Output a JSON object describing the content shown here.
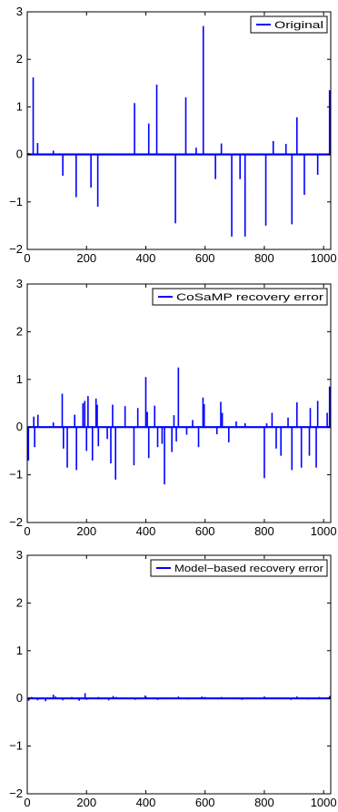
{
  "chart_data": [
    {
      "type": "stem",
      "series": [
        {
          "name": "Original",
          "color": "#0000ff"
        }
      ],
      "xlim": [
        0,
        1024
      ],
      "ylim": [
        -2,
        3
      ],
      "xticks": [
        "0",
        "200",
        "400",
        "600",
        "800",
        "1000"
      ],
      "yticks": [
        "−2",
        "−1",
        "0",
        "1",
        "2",
        "3"
      ],
      "legend_position": "top-right",
      "grid": false,
      "points": [
        {
          "x": 5,
          "y": 0.03
        },
        {
          "x": 20,
          "y": 1.62
        },
        {
          "x": 35,
          "y": 0.24
        },
        {
          "x": 88,
          "y": 0.08
        },
        {
          "x": 120,
          "y": -0.45
        },
        {
          "x": 165,
          "y": -0.9
        },
        {
          "x": 215,
          "y": -0.7
        },
        {
          "x": 238,
          "y": -1.1
        },
        {
          "x": 362,
          "y": 1.08
        },
        {
          "x": 410,
          "y": 0.65
        },
        {
          "x": 437,
          "y": 1.47
        },
        {
          "x": 500,
          "y": -1.45
        },
        {
          "x": 535,
          "y": 1.2
        },
        {
          "x": 570,
          "y": 0.14
        },
        {
          "x": 594,
          "y": 2.7
        },
        {
          "x": 635,
          "y": -0.52
        },
        {
          "x": 655,
          "y": 0.23
        },
        {
          "x": 690,
          "y": -1.73
        },
        {
          "x": 718,
          "y": -0.52
        },
        {
          "x": 735,
          "y": -1.73
        },
        {
          "x": 805,
          "y": -1.5
        },
        {
          "x": 830,
          "y": 0.28
        },
        {
          "x": 873,
          "y": 0.22
        },
        {
          "x": 893,
          "y": -1.47
        },
        {
          "x": 910,
          "y": 0.78
        },
        {
          "x": 935,
          "y": -0.85
        },
        {
          "x": 980,
          "y": -0.43
        },
        {
          "x": 1020,
          "y": 1.35
        }
      ]
    },
    {
      "type": "stem",
      "series": [
        {
          "name": "CoSaMP recovery error",
          "color": "#0000ff"
        }
      ],
      "xlim": [
        0,
        1024
      ],
      "ylim": [
        -2,
        3
      ],
      "xticks": [
        "0",
        "200",
        "400",
        "600",
        "800",
        "1000"
      ],
      "yticks": [
        "−2",
        "−1",
        "0",
        "1",
        "2",
        "3"
      ],
      "legend_position": "top-right",
      "grid": false,
      "points": [
        {
          "x": 4,
          "y": -0.7
        },
        {
          "x": 22,
          "y": 0.22
        },
        {
          "x": 25,
          "y": -0.42
        },
        {
          "x": 36,
          "y": 0.26
        },
        {
          "x": 88,
          "y": 0.1
        },
        {
          "x": 118,
          "y": 0.7
        },
        {
          "x": 122,
          "y": -0.45
        },
        {
          "x": 135,
          "y": -0.85
        },
        {
          "x": 160,
          "y": 0.26
        },
        {
          "x": 166,
          "y": -0.9
        },
        {
          "x": 188,
          "y": 0.5
        },
        {
          "x": 194,
          "y": 0.55
        },
        {
          "x": 200,
          "y": -0.5
        },
        {
          "x": 205,
          "y": 0.65
        },
        {
          "x": 220,
          "y": -0.7
        },
        {
          "x": 232,
          "y": 0.6
        },
        {
          "x": 236,
          "y": 0.47
        },
        {
          "x": 240,
          "y": -0.4
        },
        {
          "x": 270,
          "y": -0.25
        },
        {
          "x": 282,
          "y": -0.76
        },
        {
          "x": 288,
          "y": 0.47
        },
        {
          "x": 298,
          "y": -1.1
        },
        {
          "x": 330,
          "y": 0.44
        },
        {
          "x": 360,
          "y": -0.8
        },
        {
          "x": 373,
          "y": 0.4
        },
        {
          "x": 400,
          "y": 1.05
        },
        {
          "x": 405,
          "y": 0.32
        },
        {
          "x": 410,
          "y": -0.65
        },
        {
          "x": 430,
          "y": 0.45
        },
        {
          "x": 440,
          "y": -0.42
        },
        {
          "x": 455,
          "y": -0.35
        },
        {
          "x": 463,
          "y": -1.2
        },
        {
          "x": 488,
          "y": -0.52
        },
        {
          "x": 495,
          "y": 0.25
        },
        {
          "x": 503,
          "y": -0.3
        },
        {
          "x": 510,
          "y": 1.25
        },
        {
          "x": 538,
          "y": -0.16
        },
        {
          "x": 558,
          "y": 0.15
        },
        {
          "x": 578,
          "y": -0.42
        },
        {
          "x": 593,
          "y": 0.62
        },
        {
          "x": 597,
          "y": 0.48
        },
        {
          "x": 640,
          "y": -0.15
        },
        {
          "x": 653,
          "y": 0.53
        },
        {
          "x": 658,
          "y": 0.3
        },
        {
          "x": 680,
          "y": -0.32
        },
        {
          "x": 705,
          "y": 0.12
        },
        {
          "x": 735,
          "y": 0.08
        },
        {
          "x": 800,
          "y": -1.07
        },
        {
          "x": 808,
          "y": 0.08
        },
        {
          "x": 826,
          "y": 0.3
        },
        {
          "x": 840,
          "y": -0.45
        },
        {
          "x": 856,
          "y": -0.6
        },
        {
          "x": 880,
          "y": 0.2
        },
        {
          "x": 893,
          "y": -0.9
        },
        {
          "x": 910,
          "y": 0.52
        },
        {
          "x": 925,
          "y": -0.85
        },
        {
          "x": 952,
          "y": -0.6
        },
        {
          "x": 955,
          "y": 0.4
        },
        {
          "x": 975,
          "y": -0.85
        },
        {
          "x": 980,
          "y": 0.55
        },
        {
          "x": 1012,
          "y": 0.3
        },
        {
          "x": 1020,
          "y": 0.85
        }
      ]
    },
    {
      "type": "stem",
      "series": [
        {
          "name": "Model−based recovery error",
          "color": "#0000ff"
        }
      ],
      "xlim": [
        0,
        1024
      ],
      "ylim": [
        -2,
        3
      ],
      "xticks": [
        "0",
        "200",
        "400",
        "600",
        "800",
        "1000"
      ],
      "yticks": [
        "−2",
        "−1",
        "0",
        "1",
        "2",
        "3"
      ],
      "legend_position": "top-right",
      "grid": false,
      "points": [
        {
          "x": 5,
          "y": -0.05
        },
        {
          "x": 15,
          "y": 0.03
        },
        {
          "x": 35,
          "y": -0.04
        },
        {
          "x": 62,
          "y": -0.06
        },
        {
          "x": 88,
          "y": 0.08
        },
        {
          "x": 95,
          "y": 0.04
        },
        {
          "x": 120,
          "y": -0.04
        },
        {
          "x": 150,
          "y": 0.03
        },
        {
          "x": 175,
          "y": -0.05
        },
        {
          "x": 195,
          "y": 0.11
        },
        {
          "x": 200,
          "y": -0.03
        },
        {
          "x": 240,
          "y": 0.03
        },
        {
          "x": 275,
          "y": -0.04
        },
        {
          "x": 290,
          "y": 0.05
        },
        {
          "x": 300,
          "y": 0.03
        },
        {
          "x": 330,
          "y": 0.02
        },
        {
          "x": 365,
          "y": -0.03
        },
        {
          "x": 398,
          "y": 0.06
        },
        {
          "x": 402,
          "y": 0.03
        },
        {
          "x": 440,
          "y": -0.03
        },
        {
          "x": 470,
          "y": 0.02
        },
        {
          "x": 510,
          "y": 0.04
        },
        {
          "x": 540,
          "y": -0.02
        },
        {
          "x": 590,
          "y": 0.04
        },
        {
          "x": 600,
          "y": 0.03
        },
        {
          "x": 655,
          "y": 0.03
        },
        {
          "x": 700,
          "y": 0.02
        },
        {
          "x": 725,
          "y": -0.03
        },
        {
          "x": 800,
          "y": 0.04
        },
        {
          "x": 830,
          "y": 0.02
        },
        {
          "x": 890,
          "y": -0.03
        },
        {
          "x": 910,
          "y": 0.04
        },
        {
          "x": 950,
          "y": -0.02
        },
        {
          "x": 985,
          "y": 0.03
        },
        {
          "x": 1020,
          "y": 0.05
        }
      ]
    }
  ]
}
